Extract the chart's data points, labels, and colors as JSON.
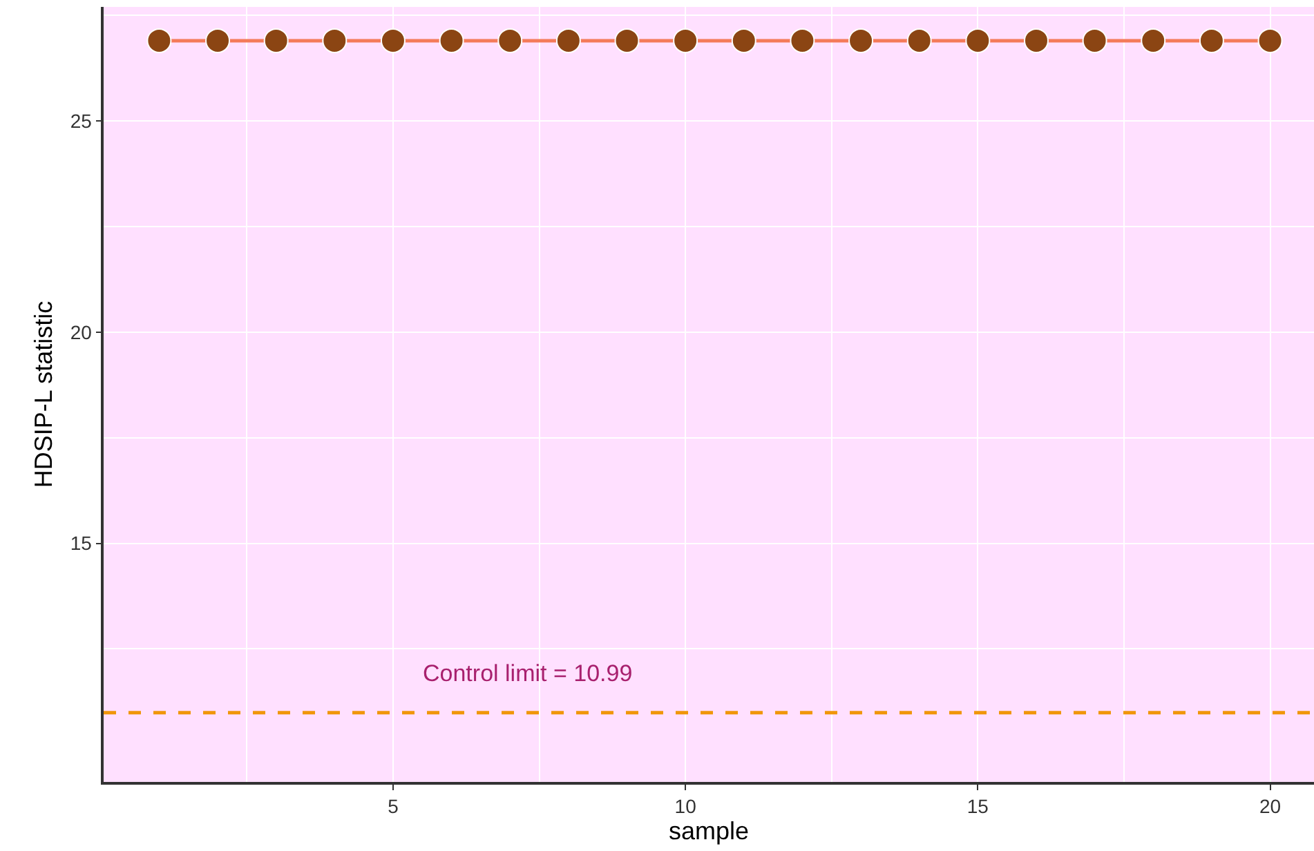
{
  "chart_data": {
    "type": "line",
    "xlabel": "sample",
    "ylabel": "HDSIP-L statistic",
    "x": [
      1,
      2,
      3,
      4,
      5,
      6,
      7,
      8,
      9,
      10,
      11,
      12,
      13,
      14,
      15,
      16,
      17,
      18,
      19,
      20
    ],
    "series": [
      {
        "color": "#f47a5a",
        "colors": [
          "#8b4513",
          "#8b4513",
          "#8b4513",
          "#8b4513",
          "#8b4513",
          "#8b4513",
          "#8b4513",
          "#8b4513",
          "#8b4513",
          "#8b4513",
          "#8b4513",
          "#8b4513",
          "#8b4513",
          "#8b4513",
          "#8b4513",
          "#8b4513",
          "#8b4513",
          "#8b4513",
          "#8b4513",
          "#8b4513"
        ],
        "values": [
          26.9,
          26.9,
          26.9,
          26.9,
          26.9,
          26.9,
          26.9,
          26.9,
          26.9,
          26.9,
          26.9,
          26.9,
          26.9,
          26.9,
          26.9,
          26.9,
          26.9,
          26.9,
          26.9,
          26.9
        ]
      }
    ],
    "xlim": [
      0.05,
      20.75
    ],
    "xticks": [
      5,
      10,
      15,
      20
    ],
    "ylim": [
      9.35,
      27.7
    ],
    "yticks": [
      15,
      20,
      25
    ],
    "ref_lines": [
      {
        "axis": "y",
        "value": 10.99,
        "label": "Control limit = 10.99",
        "color": "#f0960a",
        "line_style": "dashed"
      }
    ],
    "grid": true,
    "marker": "circle",
    "line_style": "solid"
  }
}
